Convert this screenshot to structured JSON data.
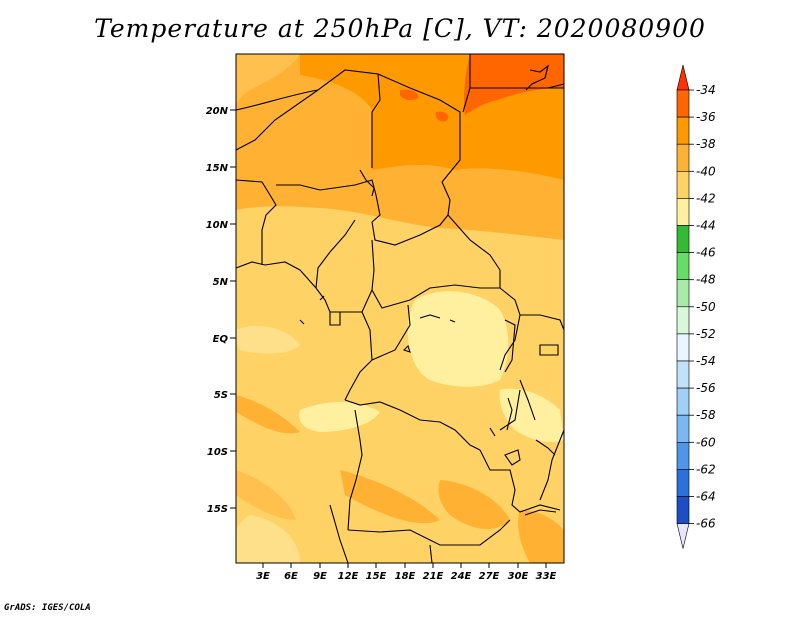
{
  "title": "Temperature at 250hPa [C], VT: 2020080900",
  "credit": "GrADS: IGES/COLA",
  "lat_labels": [
    "20N",
    "15N",
    "10N",
    "5N",
    "EQ",
    "5S",
    "10S",
    "15S"
  ],
  "lon_labels": [
    "3E",
    "6E",
    "9E",
    "12E",
    "15E",
    "18E",
    "21E",
    "24E",
    "27E",
    "30E",
    "33E"
  ],
  "colorbar": {
    "labels": [
      "-34",
      "-36",
      "-38",
      "-40",
      "-42",
      "-44",
      "-46",
      "-48",
      "-50",
      "-52",
      "-54",
      "-56",
      "-58",
      "-60",
      "-62",
      "-64",
      "-66"
    ],
    "colors": [
      "#ff3300",
      "#ff6600",
      "#ff9900",
      "#ffb133",
      "#ffd266",
      "#fff0a0",
      "#33bb33",
      "#66dd66",
      "#a8eaa8",
      "#d9f7d9",
      "#e8f6ff",
      "#bfe2fa",
      "#9fd0f7",
      "#7ab8f2",
      "#4f95ea",
      "#2a71dc",
      "#1a4fc6",
      "#0c2e9c",
      "#000a6e",
      "#e6e6ff"
    ]
  }
}
